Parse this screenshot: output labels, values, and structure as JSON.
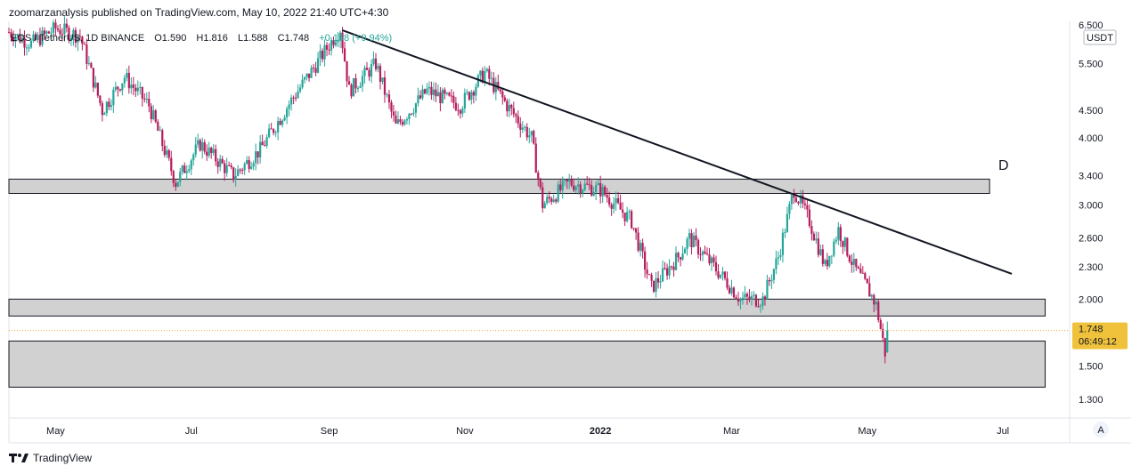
{
  "header": {
    "published": "zoomarzanalysis published on TradingView.com, May 10, 2022 21:40 UTC+4:30",
    "symbol": "EOS / TetherUS, 1D BINANCE",
    "open": "O1.590",
    "high": "H1.816",
    "low": "L1.588",
    "close": "C1.748",
    "change": "+0.158 (+9.94%)"
  },
  "footer": {
    "brand": "TradingView",
    "logo_text": "17"
  },
  "price_axis": {
    "currency": "USDT",
    "ticks": [
      "6.500",
      "5.500",
      "4.500",
      "4.000",
      "3.400",
      "3.000",
      "2.600",
      "2.300",
      "2.000",
      "1.748",
      "1.500",
      "1.300"
    ],
    "last_price": "1.748",
    "countdown": "06:49:12",
    "auto_label": "A"
  },
  "time_axis": {
    "labels": [
      "May",
      "Jul",
      "Sep",
      "Nov",
      "2022",
      "Mar",
      "May",
      "Jul"
    ]
  },
  "annotations": {
    "label_d": "D"
  },
  "colors": {
    "up": "#26a69a",
    "down": "#b71c5c",
    "zone": "#d1d1d1",
    "last_price": "#f0c23b"
  },
  "chart_data": {
    "type": "candlestick",
    "title": "EOS / TetherUS, 1D BINANCE",
    "y_scale": "log",
    "ylim": [
      1.2,
      6.6
    ],
    "x_range": [
      "2021-04-10",
      "2022-07-31"
    ],
    "last_ohlc": {
      "open": 1.59,
      "high": 1.816,
      "low": 1.588,
      "close": 1.748
    },
    "price_path": [
      [
        "2021-04-10",
        6.3
      ],
      [
        "2021-04-20",
        6.0
      ],
      [
        "2021-05-01",
        6.4
      ],
      [
        "2021-05-12",
        6.2
      ],
      [
        "2021-05-22",
        4.5
      ],
      [
        "2021-06-01",
        5.2
      ],
      [
        "2021-06-12",
        4.6
      ],
      [
        "2021-06-24",
        3.3
      ],
      [
        "2021-07-05",
        3.9
      ],
      [
        "2021-07-20",
        3.4
      ],
      [
        "2021-08-01",
        3.8
      ],
      [
        "2021-08-15",
        4.7
      ],
      [
        "2021-08-25",
        5.4
      ],
      [
        "2021-09-06",
        6.4
      ],
      [
        "2021-09-10",
        4.9
      ],
      [
        "2021-09-22",
        5.5
      ],
      [
        "2021-10-01",
        4.2
      ],
      [
        "2021-10-15",
        4.9
      ],
      [
        "2021-10-30",
        4.6
      ],
      [
        "2021-11-10",
        5.3
      ],
      [
        "2021-11-20",
        4.6
      ],
      [
        "2021-12-01",
        4.0
      ],
      [
        "2021-12-06",
        3.0
      ],
      [
        "2021-12-18",
        3.3
      ],
      [
        "2022-01-01",
        3.2
      ],
      [
        "2022-01-15",
        2.8
      ],
      [
        "2022-01-24",
        2.1
      ],
      [
        "2022-02-05",
        2.4
      ],
      [
        "2022-02-10",
        2.6
      ],
      [
        "2022-02-25",
        2.2
      ],
      [
        "2022-03-05",
        2.0
      ],
      [
        "2022-03-15",
        2.0
      ],
      [
        "2022-03-22",
        2.4
      ],
      [
        "2022-03-29",
        3.2
      ],
      [
        "2022-04-05",
        2.8
      ],
      [
        "2022-04-12",
        2.3
      ],
      [
        "2022-04-18",
        2.7
      ],
      [
        "2022-04-25",
        2.3
      ],
      [
        "2022-05-01",
        2.1
      ],
      [
        "2022-05-05",
        1.95
      ],
      [
        "2022-05-09",
        1.59
      ],
      [
        "2022-05-10",
        1.748
      ]
    ],
    "support_zones": [
      {
        "low": 3.15,
        "high": 3.35,
        "from": "2021-04-10",
        "to": "2022-06-25"
      },
      {
        "low": 1.86,
        "high": 2.0,
        "from": "2021-04-10",
        "to": "2022-07-20"
      },
      {
        "low": 1.37,
        "high": 1.67,
        "from": "2021-04-10",
        "to": "2022-07-20"
      }
    ],
    "trendline": {
      "from": [
        "2021-09-07",
        6.35
      ],
      "to": [
        "2022-07-05",
        2.23
      ]
    }
  }
}
